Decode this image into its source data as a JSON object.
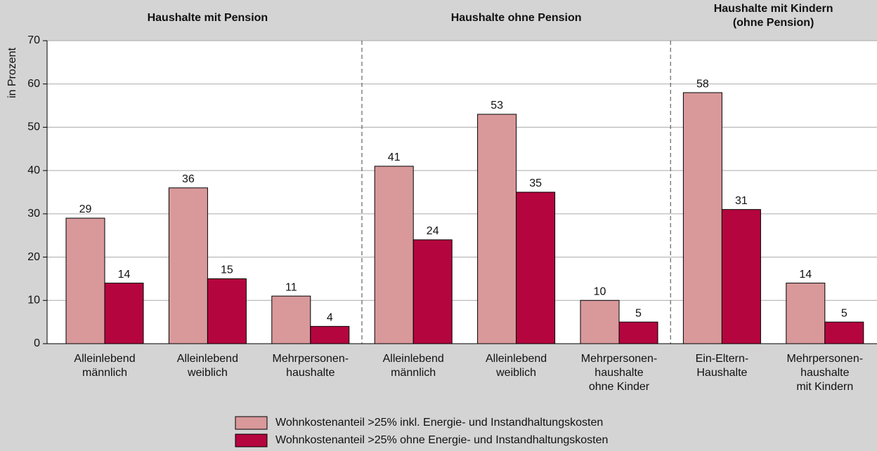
{
  "chart_data": {
    "type": "bar",
    "y_label": "in Prozent",
    "groups": [
      {
        "label": [
          "Haushalte mit Pension"
        ],
        "categories": [
          [
            "Alleinlebend",
            "männlich"
          ],
          [
            "Alleinlebend",
            "weiblich"
          ],
          [
            "Mehrpersonen-",
            "haushalte"
          ]
        ]
      },
      {
        "label": [
          "Haushalte ohne Pension"
        ],
        "categories": [
          [
            "Alleinlebend",
            "männlich"
          ],
          [
            "Alleinlebend",
            "weiblich"
          ],
          [
            "Mehrpersonen-",
            "haushalte",
            "ohne Kinder"
          ]
        ]
      },
      {
        "label": [
          "Haushalte mit Kindern",
          "(ohne Pension)"
        ],
        "categories": [
          [
            "Ein-Eltern-",
            "Haushalte"
          ],
          [
            "Mehrpersonen-",
            "haushalte",
            "mit Kindern"
          ]
        ]
      }
    ],
    "series": [
      {
        "name": "Wohnkostenanteil >25% inkl. Energie- und Instandhaltungskosten",
        "color": "#d9999b",
        "values": [
          29,
          36,
          11,
          41,
          53,
          10,
          58,
          14
        ]
      },
      {
        "name": "Wohnkostenanteil >25% ohne Energie- und Instandhaltungskosten",
        "color": "#b5053f",
        "values": [
          14,
          15,
          4,
          24,
          35,
          5,
          31,
          5
        ]
      }
    ],
    "ylim": [
      0,
      70
    ],
    "yticks": [
      0,
      10,
      20,
      30,
      40,
      50,
      60,
      70
    ],
    "grid": true
  }
}
